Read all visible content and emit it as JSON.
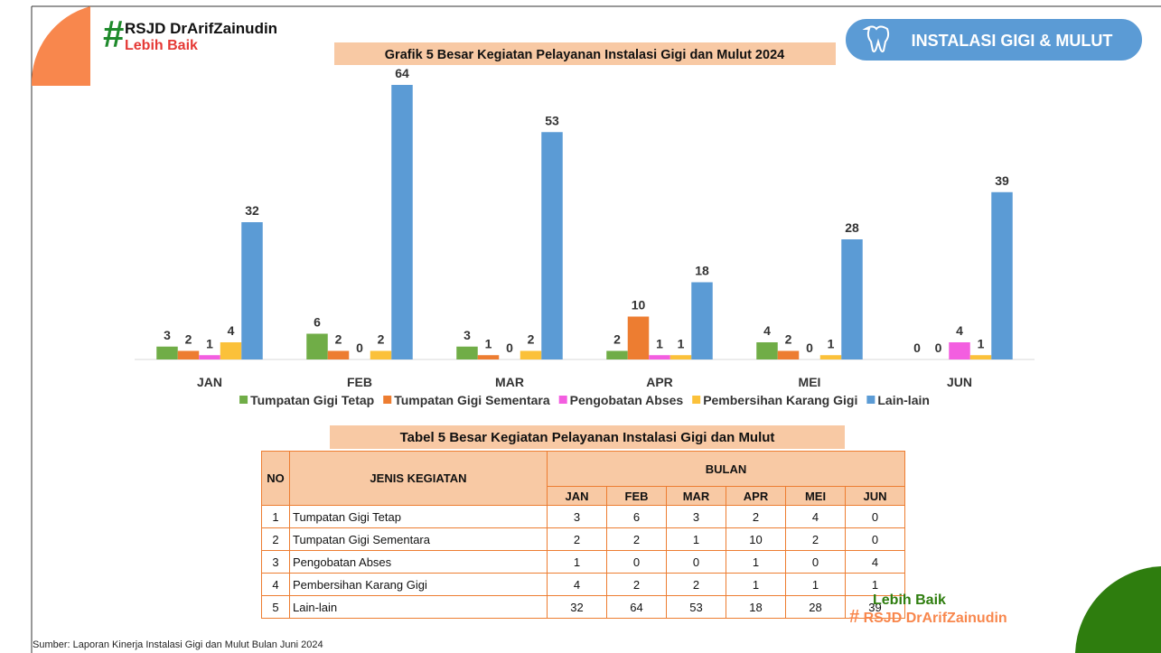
{
  "header": {
    "hospital": "RSJD DrArifZainudin",
    "tagline": "Lebih Baik",
    "badge": "INSTALASI GIGI & MULUT"
  },
  "chart_data": {
    "type": "bar",
    "title": "Grafik 5 Besar Kegiatan Pelayanan Instalasi Gigi dan Mulut 2024",
    "categories": [
      "JAN",
      "FEB",
      "MAR",
      "APR",
      "MEI",
      "JUN"
    ],
    "series": [
      {
        "name": "Tumpatan Gigi Tetap",
        "color": "#70ad47",
        "values": [
          3,
          6,
          3,
          2,
          4,
          0
        ]
      },
      {
        "name": "Tumpatan Gigi Sementara",
        "color": "#ed7d31",
        "values": [
          2,
          2,
          1,
          10,
          2,
          0
        ]
      },
      {
        "name": "Pengobatan Abses",
        "color": "#f35ee0",
        "values": [
          1,
          0,
          0,
          1,
          0,
          4
        ]
      },
      {
        "name": "Pembersihan Karang Gigi",
        "color": "#fbc13a",
        "values": [
          4,
          2,
          2,
          1,
          1,
          1
        ]
      },
      {
        "name": "Lain-lain",
        "color": "#5b9bd5",
        "values": [
          32,
          64,
          53,
          18,
          28,
          39
        ]
      }
    ],
    "ylim": [
      0,
      64
    ],
    "legend": "bottom"
  },
  "table": {
    "title": "Tabel 5 Besar Kegiatan Pelayanan Instalasi Gigi dan Mulut",
    "headers": {
      "no": "NO",
      "activity": "JENIS KEGIATAN",
      "month_group": "BULAN",
      "months": [
        "JAN",
        "FEB",
        "MAR",
        "APR",
        "MEI",
        "JUN"
      ]
    },
    "rows": [
      [
        1,
        "Tumpatan Gigi Tetap",
        3,
        6,
        3,
        2,
        4,
        0
      ],
      [
        2,
        "Tumpatan Gigi Sementara",
        2,
        2,
        1,
        10,
        2,
        0
      ],
      [
        3,
        "Pengobatan Abses",
        1,
        0,
        0,
        1,
        0,
        4
      ],
      [
        4,
        "Pembersihan Karang Gigi",
        4,
        2,
        2,
        1,
        1,
        1
      ],
      [
        5,
        "Lain-lain",
        32,
        64,
        53,
        18,
        28,
        39
      ]
    ]
  },
  "footer": {
    "source": "Sumber: Laporan Kinerja Instalasi Gigi dan Mulut Bulan Juni 2024",
    "tagline": "Lebih Baik",
    "hospital": "RSJD DrArifZainudin"
  }
}
